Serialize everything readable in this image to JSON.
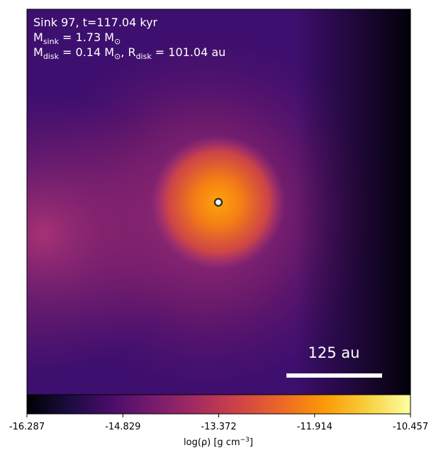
{
  "chart_data": {
    "type": "image",
    "annotations": [
      [
        "Sink 97, t=117.04 kyr"
      ],
      [
        "M",
        "sink",
        " = 1.73 M",
        "⊙"
      ],
      [
        "M",
        "disk",
        " = 0.14 M",
        "⊙",
        ", R",
        "disk",
        " = 101.04 au"
      ]
    ],
    "scale_bar_label": "125 au",
    "colormap": "inferno",
    "clim": [
      -16.287,
      -10.457
    ],
    "cticks": [
      -16.287,
      -14.829,
      -13.372,
      -11.914,
      -10.457
    ],
    "colorbar_label": [
      "log(ρ) [g cm",
      "−3",
      "]"
    ]
  }
}
